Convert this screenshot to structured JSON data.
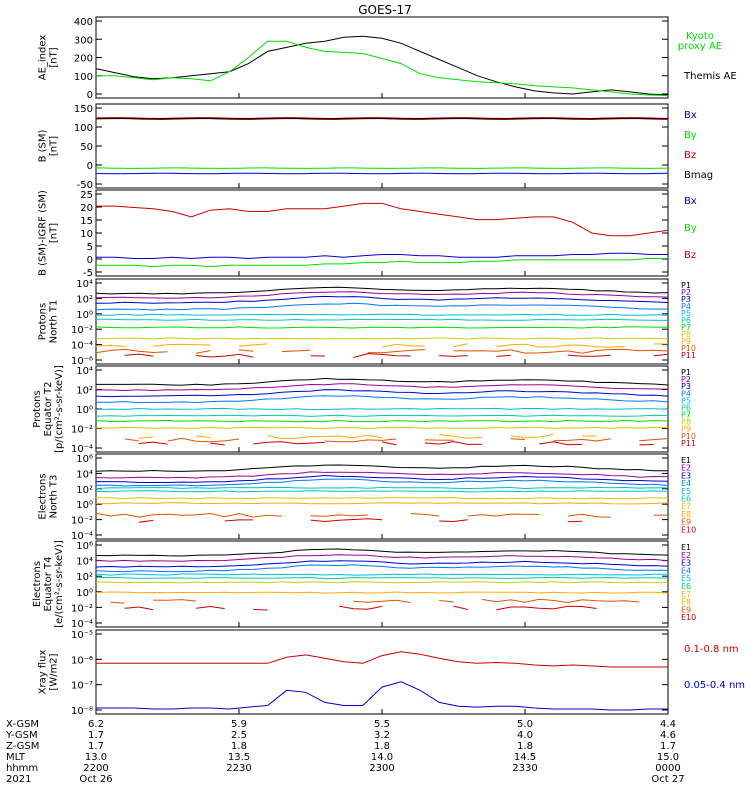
{
  "title": "GOES-17",
  "colors": {
    "black": "#000000",
    "green": "#00dd00",
    "blue": "#0000cc",
    "red": "#cc0000"
  },
  "panels": [
    {
      "id": "ae",
      "ylabel": [
        "AE_index",
        "[nT]"
      ],
      "ticks": [
        "400",
        "300",
        "200",
        "100",
        "0"
      ],
      "legend": [
        {
          "text": "Kyoto",
          "color": "#00dd00"
        },
        {
          "text": "proxy AE",
          "color": "#00dd00"
        },
        {
          "text": "Themis AE",
          "color": "#000000"
        }
      ]
    },
    {
      "id": "bsm",
      "ylabel": [
        "B (SM)",
        "[nT]"
      ],
      "ticks": [
        "150",
        "100",
        "50",
        "0",
        "-50"
      ],
      "legend": [
        {
          "text": "Bx",
          "color": "#0000cc"
        },
        {
          "text": "By",
          "color": "#00dd00"
        },
        {
          "text": "Bz",
          "color": "#cc0000"
        },
        {
          "text": "Bmag",
          "color": "#000000"
        }
      ]
    },
    {
      "id": "bigrf",
      "ylabel": [
        "B (SM)-IGRF (SM)",
        "[nT]"
      ],
      "ticks": [
        "25",
        "20",
        "15",
        "10",
        "5",
        "0",
        "-5"
      ],
      "legend": [
        {
          "text": "Bx",
          "color": "#0000cc"
        },
        {
          "text": "By",
          "color": "#00dd00"
        },
        {
          "text": "Bz",
          "color": "#cc0000"
        }
      ]
    },
    {
      "id": "pnorth",
      "ylabel": [
        "Protons",
        "North T1"
      ],
      "ticks": [
        "10⁴",
        "10²",
        "10⁰",
        "10⁻²",
        "10⁻⁴",
        "10⁻⁶"
      ],
      "legend": [
        "P1",
        "P2",
        "P3",
        "P4",
        "P5",
        "P6",
        "P7",
        "P8",
        "P9",
        "P10",
        "P11"
      ]
    },
    {
      "id": "peq",
      "ylabel": [
        "Protons",
        "Equator T2",
        "[p/(cm²-s-sr-keV)]"
      ],
      "ticks": [
        "10⁴",
        "10²",
        "10⁰",
        "10⁻²",
        "10⁻⁴"
      ],
      "legend": [
        "P1",
        "P2",
        "P3",
        "P4",
        "P5",
        "P6",
        "P7",
        "P8",
        "P9",
        "P10",
        "P11"
      ]
    },
    {
      "id": "enorth",
      "ylabel": [
        "Electrons",
        "North T3"
      ],
      "ticks": [
        "10⁶",
        "10⁴",
        "10²",
        "10⁰",
        "10⁻²",
        "10⁻⁴"
      ],
      "legend": [
        "E1",
        "E2",
        "E3",
        "E4",
        "E5",
        "E6",
        "E7",
        "E8",
        "E9",
        "E10"
      ]
    },
    {
      "id": "eeq",
      "ylabel": [
        "Electrons",
        "Equator T4",
        "[e/(cm²-s-sr-keV)]"
      ],
      "ticks": [
        "10⁶",
        "10⁴",
        "10²",
        "10⁰",
        "10⁻²",
        "10⁻⁴"
      ],
      "legend": [
        "E1",
        "E2",
        "E3",
        "E4",
        "E5",
        "E6",
        "E7",
        "E8",
        "E9",
        "E10"
      ]
    },
    {
      "id": "xray",
      "ylabel": [
        "Xray flux",
        "[W/m2]"
      ],
      "ticks": [
        "10⁻⁵",
        "10⁻⁶",
        "10⁻⁷",
        "10⁻⁸"
      ],
      "legend": [
        {
          "text": "0.1-0.8 nm",
          "color": "#cc0000"
        },
        {
          "text": "0.05-0.4 nm",
          "color": "#0000cc"
        }
      ]
    }
  ],
  "channel_colors_p": [
    "#000000",
    "#990099",
    "#0000cc",
    "#0077ff",
    "#00bbdd",
    "#00ccaa",
    "#00dd00",
    "#cccc00",
    "#ffaa00",
    "#dd5500",
    "#cc0000"
  ],
  "channel_colors_e": [
    "#000000",
    "#990099",
    "#0000cc",
    "#0077ff",
    "#00bbdd",
    "#00ccaa",
    "#cccc00",
    "#ffaa00",
    "#dd5500",
    "#cc0000"
  ],
  "footer": {
    "labels": [
      "X-GSM",
      "Y-GSM",
      "Z-GSM",
      "MLT",
      "hhmm",
      "2021"
    ],
    "columns": [
      [
        "6.2",
        "1.7",
        "1.7",
        "13.0",
        "2200",
        "Oct 26"
      ],
      [
        "5.9",
        "2.5",
        "1.8",
        "13.5",
        "2230",
        ""
      ],
      [
        "5.5",
        "3.2",
        "1.8",
        "14.0",
        "2300",
        ""
      ],
      [
        "5.0",
        "4.0",
        "1.8",
        "14.5",
        "2330",
        ""
      ],
      [
        "4.4",
        "4.6",
        "1.7",
        "15.0",
        "0000",
        "Oct 27"
      ]
    ]
  },
  "chart_data": [
    {
      "type": "line",
      "panel": "ae",
      "x": [
        0,
        2,
        4,
        6,
        8,
        10,
        12,
        14,
        16,
        18,
        20,
        22,
        24,
        26,
        28,
        30,
        32,
        34,
        36,
        38,
        40,
        42,
        44,
        46,
        48,
        50,
        52,
        54,
        56,
        58,
        60
      ],
      "series": [
        {
          "name": "Themis AE",
          "values": [
            145,
            125,
            105,
            95,
            100,
            110,
            120,
            130,
            170,
            230,
            250,
            270,
            280,
            300,
            305,
            295,
            270,
            230,
            190,
            150,
            110,
            80,
            55,
            35,
            25,
            20,
            30,
            40,
            30,
            20,
            15
          ]
        },
        {
          "name": "Kyoto proxy AE",
          "values": [
            110,
            110,
            100,
            90,
            100,
            95,
            85,
            130,
            200,
            280,
            280,
            250,
            230,
            225,
            220,
            195,
            170,
            120,
            100,
            90,
            80,
            75,
            70,
            60,
            55,
            50,
            40,
            30,
            20,
            15,
            12
          ]
        }
      ],
      "ylim": [
        0,
        400
      ]
    },
    {
      "type": "line",
      "panel": "bsm",
      "series": [
        {
          "name": "Bz",
          "values_approx": 122
        },
        {
          "name": "Bmag",
          "values_approx": 122
        },
        {
          "name": "By",
          "values_approx": -8
        },
        {
          "name": "Bx",
          "values_approx": -22
        }
      ],
      "ylim": [
        -60,
        160
      ]
    },
    {
      "type": "line",
      "panel": "bigrf",
      "x": [
        0,
        2,
        4,
        6,
        8,
        10,
        12,
        14,
        16,
        18,
        20,
        22,
        24,
        26,
        28,
        30,
        32,
        34,
        36,
        38,
        40,
        42,
        44,
        46,
        48,
        50,
        52,
        54,
        56,
        58,
        60
      ],
      "series": [
        {
          "name": "Bz",
          "values": [
            20,
            20,
            19.5,
            19,
            18,
            16,
            18.5,
            19,
            18,
            18,
            19,
            19,
            19,
            20,
            21,
            21,
            19,
            18,
            17,
            16,
            15,
            15,
            15.5,
            16,
            16,
            14,
            10,
            9,
            9,
            10,
            11
          ]
        },
        {
          "name": "Bx",
          "values": [
            1,
            1,
            0.5,
            0.5,
            1,
            0.5,
            1,
            1,
            0.5,
            1,
            1,
            1,
            1.5,
            1,
            1.5,
            2,
            2,
            1.5,
            1.5,
            1,
            1,
            1,
            1.5,
            1.5,
            1.5,
            2,
            2,
            2.5,
            2.5,
            2,
            2
          ]
        },
        {
          "name": "By",
          "values": [
            -2,
            -2,
            -2,
            -2.5,
            -2,
            -2,
            -2.5,
            -2,
            -2,
            -2,
            -2,
            -2,
            -1.5,
            -1.5,
            -1,
            -1,
            -0.5,
            -1,
            -1,
            -1,
            -0.5,
            -0.5,
            0,
            0,
            0,
            0,
            0,
            0,
            0,
            0.5,
            0.5
          ]
        }
      ],
      "ylim": [
        -6,
        26
      ]
    },
    {
      "type": "line",
      "panel": "xray",
      "x": [
        0,
        2,
        4,
        6,
        8,
        10,
        12,
        14,
        16,
        18,
        20,
        22,
        24,
        26,
        28,
        30,
        32,
        34,
        36,
        38,
        40,
        42,
        44,
        46,
        48,
        50,
        52,
        54,
        56,
        58,
        60
      ],
      "series": [
        {
          "name": "0.1-0.8 nm",
          "values": [
            7e-07,
            7e-07,
            7e-07,
            7e-07,
            7e-07,
            7e-07,
            7e-07,
            7e-07,
            7e-07,
            7e-07,
            1.2e-06,
            1.5e-06,
            1.1e-06,
            8e-07,
            7e-07,
            1.4e-06,
            2e-06,
            1.6e-06,
            1.1e-06,
            8e-07,
            7e-07,
            7.5e-07,
            7e-07,
            6e-07,
            5.5e-07,
            6e-07,
            5.5e-07,
            5e-07,
            5e-07,
            5e-07,
            5e-07
          ]
        },
        {
          "name": "0.05-0.4 nm",
          "values": [
            1.2e-08,
            1.2e-08,
            1.2e-08,
            1.1e-08,
            1.1e-08,
            1.2e-08,
            1.2e-08,
            1.1e-08,
            1.3e-08,
            1.5e-08,
            6e-08,
            5e-08,
            2e-08,
            1.5e-08,
            1.5e-08,
            8e-08,
            1.3e-07,
            6e-08,
            2e-08,
            1.4e-08,
            1.3e-08,
            1.4e-08,
            1.4e-08,
            1.2e-08,
            1.1e-08,
            1.1e-08,
            1.1e-08,
            1e-08,
            1e-08,
            1.1e-08,
            1.1e-08
          ]
        }
      ],
      "ylim": [
        1e-08,
        1e-05
      ]
    }
  ]
}
